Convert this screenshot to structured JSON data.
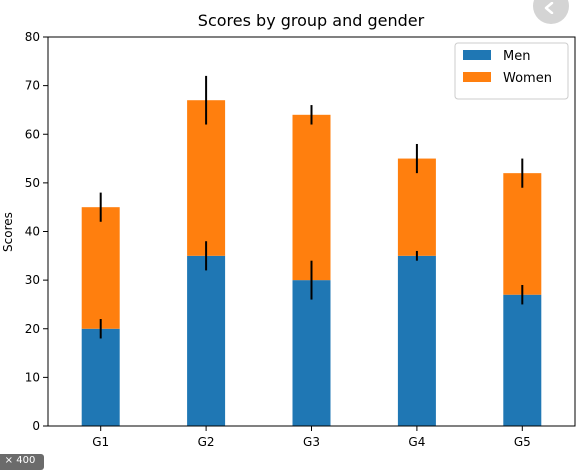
{
  "ui": {
    "size_badge": "× 400"
  },
  "chart_data": {
    "type": "bar",
    "stacked": true,
    "title": "Scores by group and gender",
    "xlabel": "",
    "ylabel": "Scores",
    "categories": [
      "G1",
      "G2",
      "G3",
      "G4",
      "G5"
    ],
    "ylim": [
      0,
      80
    ],
    "yticks": [
      0,
      10,
      20,
      30,
      40,
      50,
      60,
      70,
      80
    ],
    "grid": false,
    "legend_position": "top-right",
    "series": [
      {
        "name": "Men",
        "color": "#1f77b4",
        "values": [
          20,
          35,
          30,
          35,
          27
        ],
        "errors": [
          2,
          3,
          4,
          1,
          2
        ]
      },
      {
        "name": "Women",
        "color": "#ff7f0e",
        "values": [
          25,
          32,
          34,
          20,
          25
        ],
        "errors": [
          3,
          5,
          2,
          3,
          3
        ]
      }
    ]
  }
}
